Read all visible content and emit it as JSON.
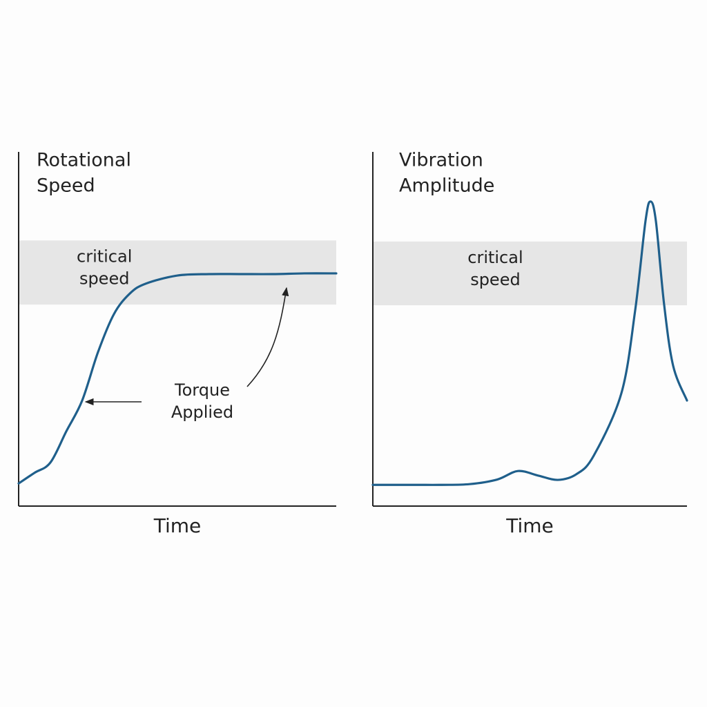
{
  "chart_data": [
    {
      "type": "line",
      "title": [
        "Rotational",
        "Speed"
      ],
      "x_label": "Time",
      "band_label": [
        "critical",
        "speed"
      ],
      "band": [
        56.9,
        75
      ],
      "annotation": [
        "Torque",
        "Applied"
      ],
      "xlim": [
        0,
        100
      ],
      "ylim": [
        0,
        100
      ],
      "series": [
        {
          "color": "#1f5f8b",
          "x": [
            0,
            5,
            10,
            15,
            20,
            25,
            30,
            35,
            40,
            50,
            60,
            70,
            80,
            90,
            100
          ],
          "values": [
            6.4,
            9.4,
            12.3,
            21.1,
            29.8,
            43.5,
            54.2,
            60.0,
            62.8,
            65.1,
            65.5,
            65.5,
            65.5,
            65.7,
            65.7
          ]
        }
      ]
    },
    {
      "type": "line",
      "title": [
        "Vibration",
        "Amplitude"
      ],
      "x_label": "Time",
      "band_label": [
        "critical",
        "speed"
      ],
      "band": [
        56.7,
        74.7
      ],
      "xlim": [
        0,
        100
      ],
      "ylim": [
        0,
        100
      ],
      "series": [
        {
          "color": "#1f5f8b",
          "x": [
            0,
            13.2,
            22.0,
            30.8,
            39.6,
            46.2,
            52.7,
            58.9,
            64.8,
            70.3,
            79.1,
            83.5,
            86.8,
            88.4,
            90.1,
            92.7,
            95.6,
            100
          ],
          "values": [
            6.0,
            6.0,
            6.0,
            6.2,
            7.5,
            9.9,
            8.6,
            7.4,
            9.0,
            14.2,
            31.8,
            55.2,
            80.5,
            86.0,
            80.5,
            57.1,
            39.6,
            29.8
          ]
        }
      ]
    }
  ]
}
